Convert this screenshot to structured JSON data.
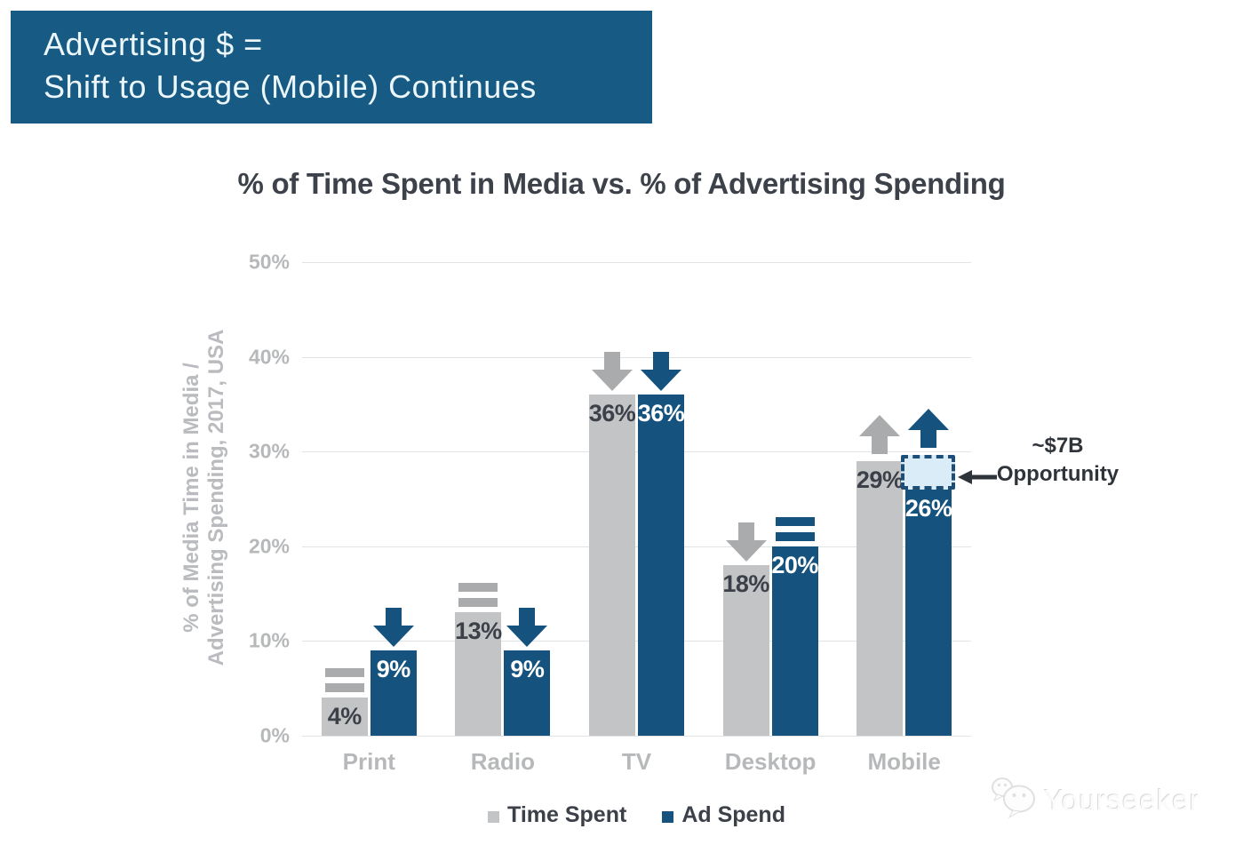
{
  "header": {
    "line1": "Advertising $ =",
    "line2": "Shift to Usage (Mobile) Continues"
  },
  "chart_data": {
    "type": "bar",
    "title": "% of Time Spent in Media vs. % of Advertising Spending",
    "categories": [
      "Print",
      "Radio",
      "TV",
      "Desktop",
      "Mobile"
    ],
    "series": [
      {
        "name": "Time Spent",
        "color": "#c3c4c6",
        "label_color": "#3c4149",
        "indicator_color": "#a9abad",
        "values": [
          4,
          13,
          36,
          18,
          29
        ],
        "indicators": [
          "equal",
          "equal",
          "down",
          "down",
          "up"
        ]
      },
      {
        "name": "Ad Spend",
        "color": "#15537e",
        "label_color": "#ffffff",
        "indicator_color": "#15537e",
        "values": [
          9,
          9,
          36,
          20,
          26
        ],
        "indicators": [
          "down",
          "down",
          "down",
          "equal",
          "up"
        ]
      }
    ],
    "value_suffix": "%",
    "ylabel_lines": [
      "% of Media Time in Media /",
      "Advertising Spending, 2017, USA"
    ],
    "yticks": [
      "0%",
      "10%",
      "20%",
      "30%",
      "40%",
      "50%"
    ],
    "ylim": [
      0,
      50
    ],
    "grid": true,
    "legend_position": "bottom",
    "annotation": {
      "lines": [
        "~$7B",
        "Opportunity"
      ],
      "target": "Mobile Ad Spend bar top",
      "box_from": 26,
      "box_to": 29.6,
      "box_fill": "#d9ecf8",
      "box_border": "#1c4e78"
    }
  },
  "watermark": {
    "text": "Yourseeker"
  },
  "colors": {
    "header_blue": "#175a83",
    "accent_blue": "#15537e",
    "bar_gray": "#c3c4c6",
    "arrow_gray": "#a9abad",
    "muted_text": "#b6b8ba",
    "dark_text": "#3d424a"
  }
}
